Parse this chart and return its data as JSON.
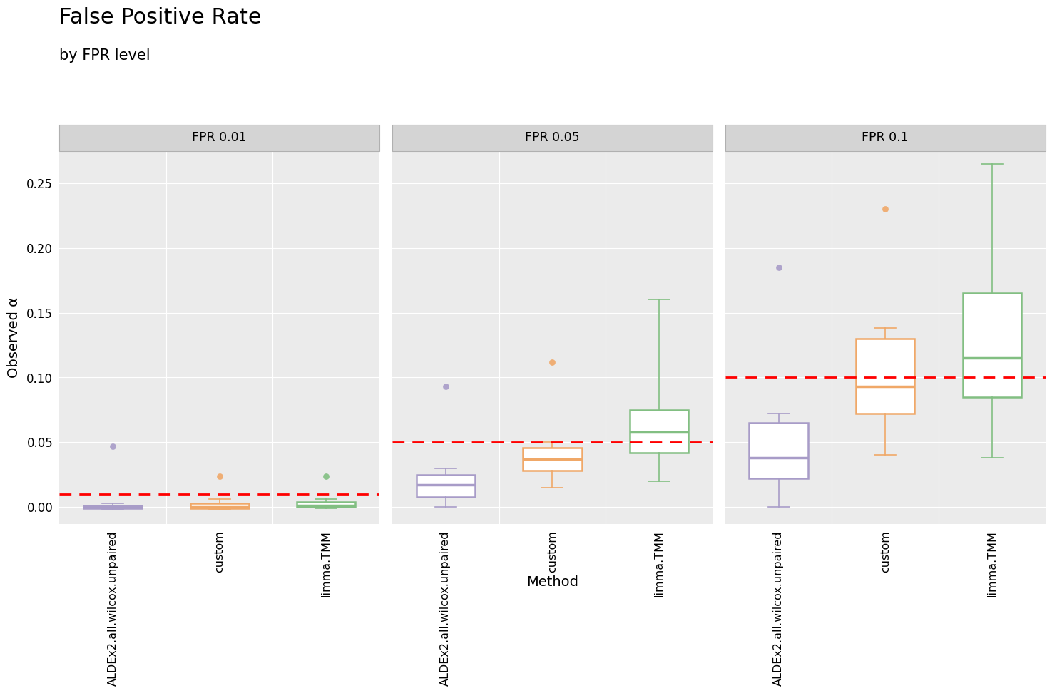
{
  "title": "False Positive Rate",
  "subtitle": "by FPR level",
  "xlabel": "Method",
  "ylabel": "Observed α",
  "facets": [
    "FPR 0.01",
    "FPR 0.05",
    "FPR 0.1"
  ],
  "fpr_levels": [
    0.01,
    0.05,
    0.1
  ],
  "methods": [
    "ALDEx2.all.wilcox.unpaired",
    "custom",
    "limma.TMM"
  ],
  "method_colors": [
    "#a89cc8",
    "#f0a868",
    "#82bf82"
  ],
  "ylim": [
    -0.013,
    0.275
  ],
  "yticks": [
    0.0,
    0.05,
    0.1,
    0.15,
    0.2,
    0.25
  ],
  "bg_color": "#ebebeb",
  "strip_color": "#d4d4d4",
  "grid_color": "#ffffff",
  "boxplot_data": {
    "FPR 0.01": {
      "ALDEx2.all.wilcox.unpaired": {
        "q1": -0.001,
        "median": 0.0,
        "q3": 0.001,
        "whislo": -0.002,
        "whishi": 0.003,
        "fliers": [
          0.047
        ]
      },
      "custom": {
        "q1": -0.001,
        "median": 0.0,
        "q3": 0.003,
        "whislo": -0.002,
        "whishi": 0.006,
        "fliers": [
          0.024
        ]
      },
      "limma.TMM": {
        "q1": 0.0,
        "median": 0.001,
        "q3": 0.004,
        "whislo": -0.001,
        "whishi": 0.006,
        "fliers": [
          0.024
        ]
      }
    },
    "FPR 0.05": {
      "ALDEx2.all.wilcox.unpaired": {
        "q1": 0.008,
        "median": 0.017,
        "q3": 0.025,
        "whislo": 0.0,
        "whishi": 0.03,
        "fliers": [
          0.093
        ]
      },
      "custom": {
        "q1": 0.028,
        "median": 0.037,
        "q3": 0.046,
        "whislo": 0.015,
        "whishi": 0.05,
        "fliers": [
          0.112
        ]
      },
      "limma.TMM": {
        "q1": 0.042,
        "median": 0.058,
        "q3": 0.075,
        "whislo": 0.02,
        "whishi": 0.16,
        "fliers": []
      }
    },
    "FPR 0.1": {
      "ALDEx2.all.wilcox.unpaired": {
        "q1": 0.022,
        "median": 0.038,
        "q3": 0.065,
        "whislo": 0.0,
        "whishi": 0.072,
        "fliers": [
          0.185
        ]
      },
      "custom": {
        "q1": 0.072,
        "median": 0.093,
        "q3": 0.13,
        "whislo": 0.04,
        "whishi": 0.138,
        "fliers": [
          0.23
        ]
      },
      "limma.TMM": {
        "q1": 0.085,
        "median": 0.115,
        "q3": 0.165,
        "whislo": 0.038,
        "whishi": 0.265,
        "fliers": []
      }
    }
  }
}
